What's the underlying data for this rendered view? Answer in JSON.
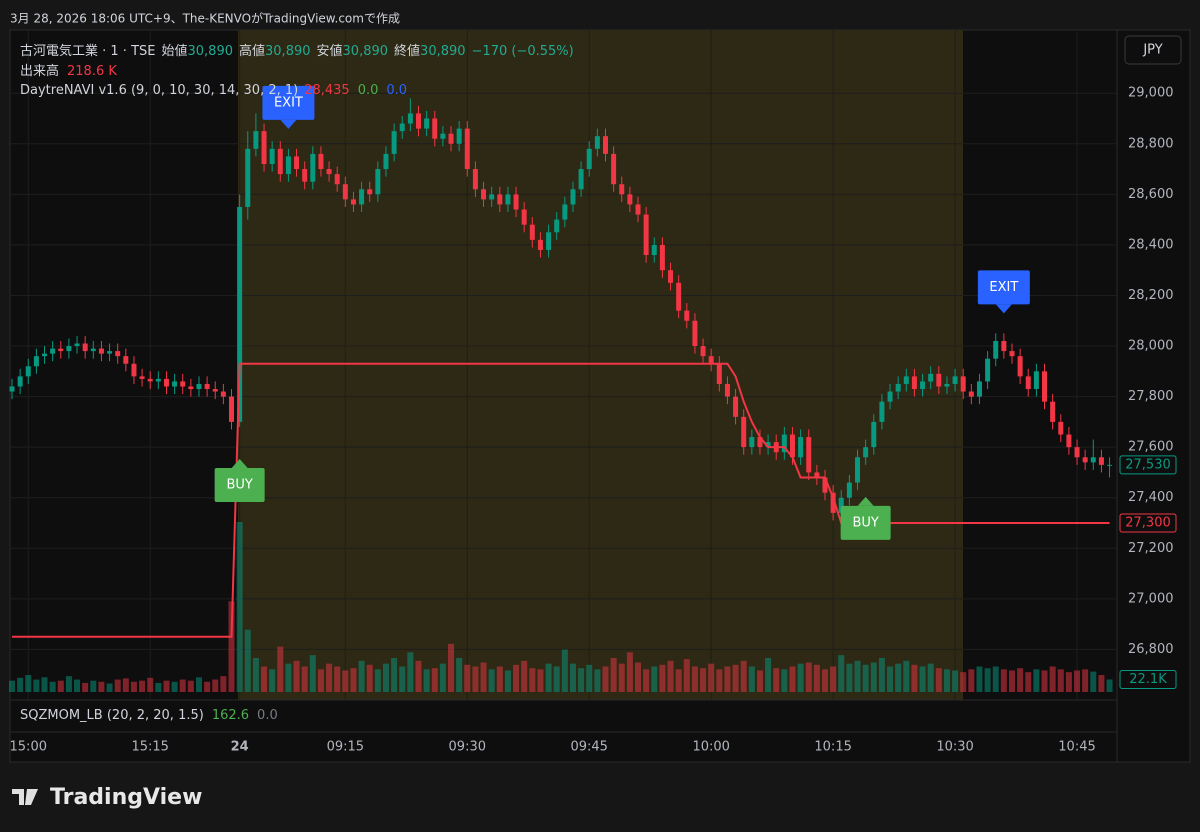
{
  "header": {
    "caption": "3月 28, 2026 18:06 UTC+9、The-KENVOがTradingView.comで作成"
  },
  "legend": {
    "symbol": "古河電気工業 · 1 · TSE",
    "ohlc": [
      {
        "name": "始値",
        "value": "30,890"
      },
      {
        "name": "高値",
        "value": "30,890"
      },
      {
        "name": "安値",
        "value": "30,890"
      },
      {
        "name": "終値",
        "value": "30,890"
      }
    ],
    "change": "−170 (−0.55%)",
    "volume_name": "出来高",
    "volume_value": "218.6 K",
    "indicator": "DaytreNAVI v1.6 (9, 0, 10, 30, 14, 30, 2, 1)",
    "indicator_values": [
      "28,435",
      "0.0",
      "0.0"
    ]
  },
  "currency": "JPY",
  "lower_pane": {
    "name": "SQZMOM_LB (20, 2, 20, 1.5)",
    "values": [
      "162.6",
      "0.0"
    ]
  },
  "footer": {
    "brand": "TradingView"
  },
  "chart_data": {
    "type": "candlestick",
    "up_color": "#089981",
    "down_color": "#f23645",
    "stop_color": "#f23645",
    "grid": true,
    "ylim": [
      26600,
      29250
    ],
    "yticks": [
      {
        "value": 26800,
        "label": "26,800"
      },
      {
        "value": 27000,
        "label": "27,000"
      },
      {
        "value": 27200,
        "label": "27,200"
      },
      {
        "value": 27400,
        "label": "27,400"
      },
      {
        "value": 27600,
        "label": "27,600"
      },
      {
        "value": 27800,
        "label": "27,800"
      },
      {
        "value": 28000,
        "label": "28,000"
      },
      {
        "value": 28200,
        "label": "28,200"
      },
      {
        "value": 28400,
        "label": "28,400"
      },
      {
        "value": 28600,
        "label": "28,600"
      },
      {
        "value": 28800,
        "label": "28,800"
      },
      {
        "value": 29000,
        "label": "29,000"
      }
    ],
    "categories": [
      null,
      null,
      "15:00",
      null,
      null,
      null,
      null,
      null,
      null,
      null,
      null,
      null,
      null,
      null,
      null,
      null,
      null,
      "15:15",
      null,
      null,
      null,
      null,
      null,
      null,
      null,
      null,
      null,
      null,
      "24",
      null,
      null,
      null,
      null,
      null,
      null,
      null,
      null,
      null,
      null,
      null,
      null,
      "09:15",
      null,
      null,
      null,
      null,
      null,
      null,
      null,
      null,
      null,
      null,
      null,
      null,
      null,
      null,
      "09:30",
      null,
      null,
      null,
      null,
      null,
      null,
      null,
      null,
      null,
      null,
      null,
      null,
      null,
      null,
      "09:45",
      null,
      null,
      null,
      null,
      null,
      null,
      null,
      null,
      null,
      null,
      null,
      null,
      null,
      null,
      "10:00",
      null,
      null,
      null,
      null,
      null,
      null,
      null,
      null,
      null,
      null,
      null,
      null,
      null,
      null,
      "10:15",
      null,
      null,
      null,
      null,
      null,
      null,
      null,
      null,
      null,
      null,
      null,
      null,
      null,
      null,
      "10:30",
      null,
      null,
      null,
      null,
      null,
      null,
      null,
      null,
      null,
      null,
      null,
      null,
      null,
      null,
      "10:45",
      null,
      null,
      null,
      null
    ],
    "open": [
      27820,
      27840,
      27880,
      27920,
      27960,
      27970,
      27990,
      27980,
      28000,
      28010,
      27980,
      27990,
      27970,
      27980,
      27960,
      27930,
      27880,
      27870,
      27860,
      27870,
      27840,
      27860,
      27840,
      27830,
      27850,
      27830,
      27820,
      27800,
      27700,
      28550,
      28780,
      28850,
      28720,
      28780,
      28680,
      28750,
      28700,
      28650,
      28760,
      28700,
      28680,
      28640,
      28580,
      28560,
      28620,
      28600,
      28700,
      28760,
      28850,
      28880,
      28920,
      28860,
      28900,
      28820,
      28840,
      28800,
      28860,
      28700,
      28620,
      28580,
      28600,
      28560,
      28600,
      28540,
      28480,
      28420,
      28380,
      28450,
      28500,
      28560,
      28620,
      28700,
      28780,
      28830,
      28760,
      28640,
      28600,
      28560,
      28520,
      28360,
      28400,
      28300,
      28250,
      28140,
      28100,
      28000,
      27960,
      27930,
      27850,
      27800,
      27720,
      27600,
      27640,
      27600,
      27620,
      27580,
      27650,
      27560,
      27640,
      27500,
      27480,
      27420,
      27340,
      27400,
      27460,
      27560,
      27600,
      27700,
      27780,
      27820,
      27850,
      27880,
      27830,
      27860,
      27890,
      27840,
      27850,
      27880,
      27820,
      27800,
      27860,
      27950,
      28020,
      27980,
      27960,
      27880,
      27830,
      27900,
      27780,
      27700,
      27650,
      27600,
      27560,
      27540,
      27560,
      27530
    ],
    "high": [
      27870,
      27910,
      27950,
      27990,
      28000,
      28020,
      28020,
      28030,
      28040,
      28040,
      28020,
      28020,
      28010,
      28010,
      27990,
      27960,
      27910,
      27900,
      27900,
      27900,
      27890,
      27890,
      27870,
      27880,
      27880,
      27860,
      27850,
      27830,
      28600,
      28850,
      28920,
      28880,
      28810,
      28810,
      28780,
      28780,
      28730,
      28790,
      28790,
      28730,
      28710,
      28670,
      28610,
      28650,
      28650,
      28730,
      28790,
      28880,
      28910,
      28980,
      28950,
      28930,
      28930,
      28870,
      28870,
      28890,
      28890,
      28730,
      28650,
      28630,
      28630,
      28630,
      28630,
      28570,
      28510,
      28450,
      28480,
      28530,
      28590,
      28650,
      28730,
      28810,
      28860,
      28860,
      28790,
      28670,
      28630,
      28590,
      28550,
      28430,
      28430,
      28330,
      28280,
      28170,
      28130,
      28030,
      27990,
      27960,
      27880,
      27830,
      27750,
      27670,
      27670,
      27650,
      27650,
      27680,
      27680,
      27670,
      27670,
      27530,
      27510,
      27450,
      27430,
      27490,
      27590,
      27630,
      27730,
      27810,
      27850,
      27880,
      27910,
      27910,
      27890,
      27920,
      27920,
      27880,
      27910,
      27910,
      27850,
      27890,
      27980,
      28050,
      28050,
      28010,
      27990,
      27910,
      27930,
      27930,
      27810,
      27730,
      27680,
      27630,
      27590,
      27630,
      27590,
      27560
    ],
    "low": [
      27790,
      27810,
      27850,
      27890,
      27930,
      27940,
      27950,
      27950,
      27970,
      27950,
      27950,
      27940,
      27940,
      27930,
      27900,
      27850,
      27840,
      27830,
      27830,
      27810,
      27810,
      27810,
      27800,
      27800,
      27800,
      27790,
      27770,
      27670,
      27680,
      28500,
      28750,
      28690,
      28690,
      28650,
      28650,
      28670,
      28620,
      28620,
      28670,
      28650,
      28610,
      28550,
      28530,
      28530,
      28570,
      28570,
      28670,
      28730,
      28820,
      28850,
      28830,
      28830,
      28790,
      28790,
      28770,
      28770,
      28670,
      28590,
      28550,
      28550,
      28530,
      28530,
      28510,
      28450,
      28390,
      28350,
      28350,
      28420,
      28470,
      28530,
      28590,
      28670,
      28750,
      28730,
      28610,
      28570,
      28530,
      28490,
      28330,
      28330,
      28270,
      28220,
      28110,
      28070,
      27970,
      27930,
      27900,
      27820,
      27770,
      27690,
      27570,
      27570,
      27570,
      27570,
      27550,
      27550,
      27530,
      27530,
      27470,
      27450,
      27390,
      27310,
      27310,
      27370,
      27430,
      27530,
      27570,
      27670,
      27750,
      27790,
      27820,
      27800,
      27800,
      27830,
      27810,
      27810,
      27820,
      27790,
      27770,
      27770,
      27830,
      27920,
      27950,
      27930,
      27850,
      27800,
      27800,
      27750,
      27670,
      27620,
      27570,
      27530,
      27510,
      27510,
      27500,
      27480
    ],
    "close": [
      27840,
      27880,
      27920,
      27960,
      27970,
      27990,
      27980,
      28000,
      28010,
      27980,
      27990,
      27970,
      27980,
      27960,
      27930,
      27880,
      27870,
      27860,
      27870,
      27840,
      27860,
      27840,
      27830,
      27850,
      27830,
      27820,
      27800,
      27700,
      28550,
      28780,
      28850,
      28720,
      28780,
      28680,
      28750,
      28700,
      28650,
      28760,
      28700,
      28680,
      28640,
      28580,
      28560,
      28620,
      28600,
      28700,
      28760,
      28850,
      28880,
      28920,
      28860,
      28900,
      28820,
      28840,
      28800,
      28860,
      28700,
      28620,
      28580,
      28600,
      28560,
      28600,
      28540,
      28480,
      28420,
      28380,
      28450,
      28500,
      28560,
      28620,
      28700,
      28780,
      28830,
      28760,
      28640,
      28600,
      28560,
      28520,
      28360,
      28400,
      28300,
      28250,
      28140,
      28100,
      28000,
      27960,
      27930,
      27850,
      27800,
      27720,
      27600,
      27640,
      27600,
      27620,
      27580,
      27650,
      27560,
      27640,
      27500,
      27480,
      27420,
      27340,
      27400,
      27460,
      27560,
      27600,
      27700,
      27780,
      27820,
      27850,
      27880,
      27830,
      27860,
      27890,
      27840,
      27850,
      27880,
      27820,
      27800,
      27860,
      27950,
      28020,
      27980,
      27960,
      27880,
      27830,
      27900,
      27780,
      27700,
      27650,
      27600,
      27560,
      27540,
      27560,
      27530,
      27530
    ],
    "volume": [
      20000,
      25000,
      30000,
      22000,
      26000,
      18000,
      20000,
      28000,
      22000,
      16000,
      20000,
      18000,
      15000,
      22000,
      24000,
      18000,
      20000,
      25000,
      16000,
      20000,
      18000,
      22000,
      20000,
      26000,
      18000,
      22000,
      28000,
      160000,
      300000,
      110000,
      60000,
      45000,
      40000,
      80000,
      50000,
      55000,
      45000,
      65000,
      40000,
      50000,
      45000,
      38000,
      42000,
      55000,
      48000,
      40000,
      50000,
      60000,
      45000,
      70000,
      55000,
      40000,
      42000,
      50000,
      85000,
      60000,
      48000,
      45000,
      52000,
      40000,
      45000,
      38000,
      48000,
      55000,
      42000,
      40000,
      50000,
      45000,
      75000,
      50000,
      42000,
      48000,
      40000,
      45000,
      60000,
      50000,
      70000,
      52000,
      40000,
      45000,
      48000,
      55000,
      40000,
      58000,
      45000,
      42000,
      50000,
      40000,
      45000,
      48000,
      55000,
      45000,
      38000,
      60000,
      42000,
      40000,
      45000,
      50000,
      52000,
      48000,
      40000,
      45000,
      65000,
      50000,
      55000,
      48000,
      52000,
      60000,
      45000,
      50000,
      55000,
      48000,
      45000,
      50000,
      42000,
      40000,
      38000,
      35000,
      40000,
      45000,
      42000,
      45000,
      40000,
      38000,
      42000,
      35000,
      40000,
      38000,
      45000,
      40000,
      35000,
      38000,
      40000,
      36000,
      30000,
      22100
    ],
    "stop": [
      26850,
      26850,
      26850,
      26850,
      26850,
      26850,
      26850,
      26850,
      26850,
      26850,
      26850,
      26850,
      26850,
      26850,
      26850,
      26850,
      26850,
      26850,
      26850,
      26850,
      26850,
      26850,
      26850,
      26850,
      26850,
      26850,
      26850,
      26850,
      27930,
      27930,
      27930,
      27930,
      27930,
      27930,
      27930,
      27930,
      27930,
      27930,
      27930,
      27930,
      27930,
      27930,
      27930,
      27930,
      27930,
      27930,
      27930,
      27930,
      27930,
      27930,
      27930,
      27930,
      27930,
      27930,
      27930,
      27930,
      27930,
      27930,
      27930,
      27930,
      27930,
      27930,
      27930,
      27930,
      27930,
      27930,
      27930,
      27930,
      27930,
      27930,
      27930,
      27930,
      27930,
      27930,
      27930,
      27930,
      27930,
      27930,
      27930,
      27930,
      27930,
      27930,
      27930,
      27930,
      27930,
      27930,
      27930,
      27930,
      27930,
      27880,
      27780,
      27700,
      27640,
      27600,
      27600,
      27600,
      27560,
      27480,
      27480,
      27480,
      27480,
      27400,
      27300,
      27300,
      27300,
      27300,
      27300,
      27300,
      27300,
      27300,
      27300,
      27300,
      27300,
      27300,
      27300,
      27300,
      27300,
      27300,
      27300,
      27300,
      27300,
      27300,
      27300,
      27300,
      27300,
      27300,
      27300,
      27300,
      27300,
      27300,
      27300,
      27300,
      27300,
      27300,
      27300,
      27300
    ],
    "signals": [
      null,
      null,
      null,
      null,
      null,
      null,
      null,
      null,
      null,
      null,
      null,
      null,
      null,
      null,
      null,
      null,
      null,
      null,
      null,
      null,
      null,
      null,
      null,
      null,
      null,
      null,
      null,
      null,
      "BUY",
      null,
      null,
      null,
      null,
      null,
      "EXIT",
      null,
      null,
      null,
      null,
      null,
      null,
      null,
      null,
      null,
      null,
      null,
      null,
      null,
      null,
      null,
      null,
      null,
      null,
      null,
      null,
      null,
      null,
      null,
      null,
      null,
      null,
      null,
      null,
      null,
      null,
      null,
      null,
      null,
      null,
      null,
      null,
      null,
      null,
      null,
      null,
      null,
      null,
      null,
      null,
      null,
      null,
      null,
      null,
      null,
      null,
      null,
      null,
      null,
      null,
      null,
      null,
      null,
      null,
      null,
      null,
      null,
      null,
      null,
      null,
      null,
      null,
      null,
      null,
      null,
      null,
      "BUY",
      null,
      null,
      null,
      null,
      null,
      null,
      null,
      null,
      null,
      null,
      null,
      null,
      null,
      null,
      null,
      null,
      "EXIT",
      null,
      null,
      null,
      null,
      null,
      null,
      null,
      null,
      null,
      null,
      null,
      null,
      null
    ],
    "price_labels": [
      {
        "value": 27530,
        "label": "27,530",
        "color": "#089981"
      },
      {
        "value": 27300,
        "label": "27,300",
        "color": "#f23645"
      }
    ],
    "volume_label": {
      "value": 22100,
      "label": "22.1K",
      "color": "#089981"
    }
  }
}
